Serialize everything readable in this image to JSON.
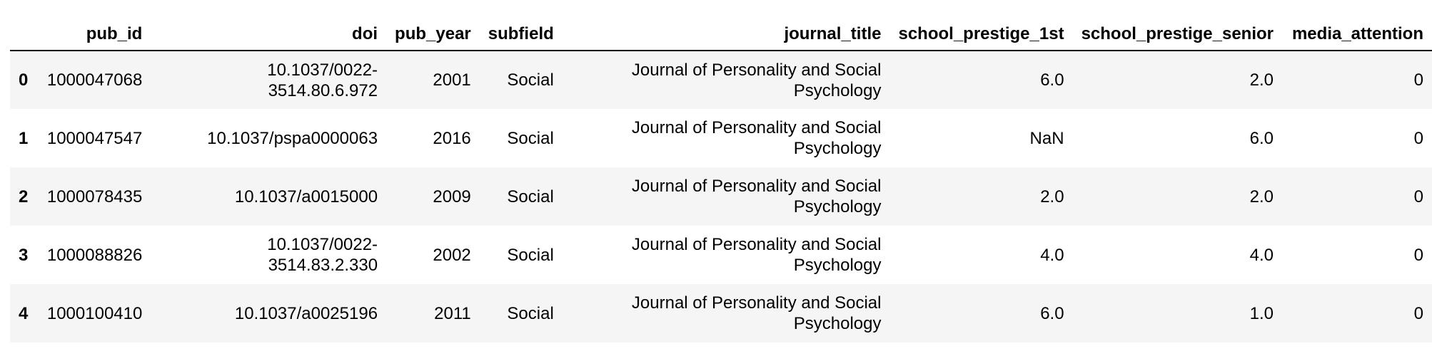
{
  "table": {
    "columns": [
      "",
      "pub_id",
      "doi",
      "pub_year",
      "subfield",
      "journal_title",
      "school_prestige_1st",
      "school_prestige_senior",
      "media_attention"
    ],
    "rows": [
      {
        "index": "0",
        "pub_id": "1000047068",
        "doi": "10.1037/0022-3514.80.6.972",
        "pub_year": "2001",
        "subfield": "Social",
        "journal_title": "Journal of Personality and Social Psychology",
        "school_prestige_1st": "6.0",
        "school_prestige_senior": "2.0",
        "media_attention": "0"
      },
      {
        "index": "1",
        "pub_id": "1000047547",
        "doi": "10.1037/pspa0000063",
        "pub_year": "2016",
        "subfield": "Social",
        "journal_title": "Journal of Personality and Social Psychology",
        "school_prestige_1st": "NaN",
        "school_prestige_senior": "6.0",
        "media_attention": "0"
      },
      {
        "index": "2",
        "pub_id": "1000078435",
        "doi": "10.1037/a0015000",
        "pub_year": "2009",
        "subfield": "Social",
        "journal_title": "Journal of Personality and Social Psychology",
        "school_prestige_1st": "2.0",
        "school_prestige_senior": "2.0",
        "media_attention": "0"
      },
      {
        "index": "3",
        "pub_id": "1000088826",
        "doi": "10.1037/0022-3514.83.2.330",
        "pub_year": "2002",
        "subfield": "Social",
        "journal_title": "Journal of Personality and Social Psychology",
        "school_prestige_1st": "4.0",
        "school_prestige_senior": "4.0",
        "media_attention": "0"
      },
      {
        "index": "4",
        "pub_id": "1000100410",
        "doi": "10.1037/a0025196",
        "pub_year": "2011",
        "subfield": "Social",
        "journal_title": "Journal of Personality and Social Psychology",
        "school_prestige_1st": "6.0",
        "school_prestige_senior": "1.0",
        "media_attention": "0"
      }
    ]
  },
  "colors": {
    "stripe": "#f5f5f5",
    "header_rule": "#000000"
  }
}
